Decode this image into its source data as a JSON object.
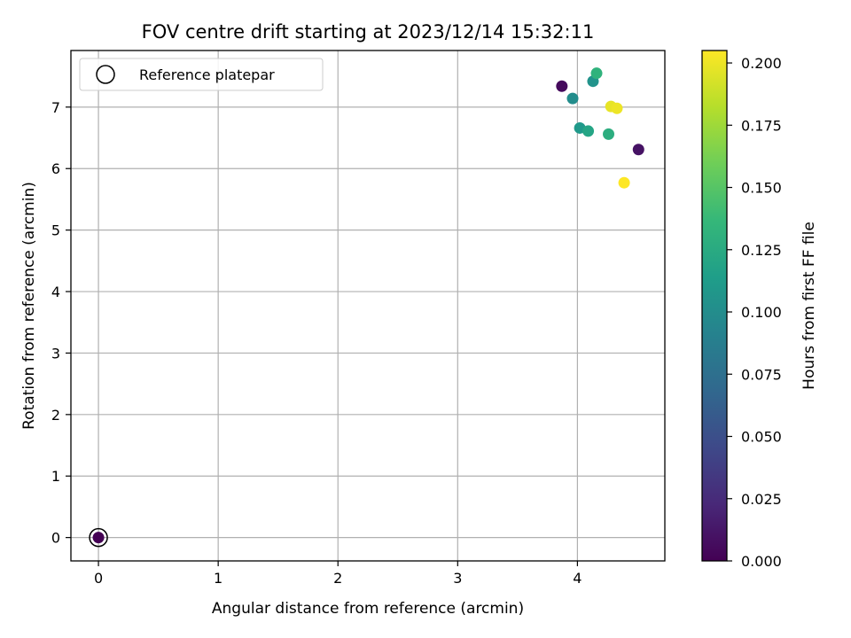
{
  "chart_data": {
    "type": "scatter",
    "title": "FOV centre drift starting at 2023/12/14 15:32:11",
    "xlabel": "Angular distance from reference (arcmin)",
    "ylabel": "Rotation from reference (arcmin)",
    "xlim": [
      -0.23,
      4.73
    ],
    "ylim": [
      -0.38,
      7.92
    ],
    "xticks": [
      0,
      1,
      2,
      3,
      4
    ],
    "yticks": [
      0,
      1,
      2,
      3,
      4,
      5,
      6,
      7
    ],
    "grid": true,
    "legend": {
      "placement": "top-left",
      "entries": [
        "Reference platepar"
      ]
    },
    "reference": {
      "x": 0,
      "y": 0,
      "c": 0.0
    },
    "colorbar": {
      "label": "Hours from first FF file",
      "range": [
        0.0,
        0.205
      ],
      "ticks": [
        "0.000",
        "0.025",
        "0.050",
        "0.075",
        "0.100",
        "0.125",
        "0.150",
        "0.175",
        "0.200"
      ],
      "colormap": [
        "#440154",
        "#482878",
        "#3e4989",
        "#31688e",
        "#26828e",
        "#1f9e89",
        "#35b779",
        "#6ece58",
        "#b5de2b",
        "#fde725"
      ]
    },
    "points": [
      {
        "x": 0.0,
        "y": 0.0,
        "c": 0.0
      },
      {
        "x": 3.87,
        "y": 7.34,
        "c": 0.005
      },
      {
        "x": 4.51,
        "y": 6.31,
        "c": 0.01
      },
      {
        "x": 3.96,
        "y": 7.14,
        "c": 0.1
      },
      {
        "x": 4.13,
        "y": 7.42,
        "c": 0.105
      },
      {
        "x": 4.02,
        "y": 6.66,
        "c": 0.11
      },
      {
        "x": 4.09,
        "y": 6.61,
        "c": 0.12
      },
      {
        "x": 4.26,
        "y": 6.56,
        "c": 0.128
      },
      {
        "x": 4.16,
        "y": 7.55,
        "c": 0.132
      },
      {
        "x": 4.28,
        "y": 7.01,
        "c": 0.198
      },
      {
        "x": 4.33,
        "y": 6.98,
        "c": 0.2
      },
      {
        "x": 4.39,
        "y": 5.77,
        "c": 0.205
      }
    ]
  }
}
